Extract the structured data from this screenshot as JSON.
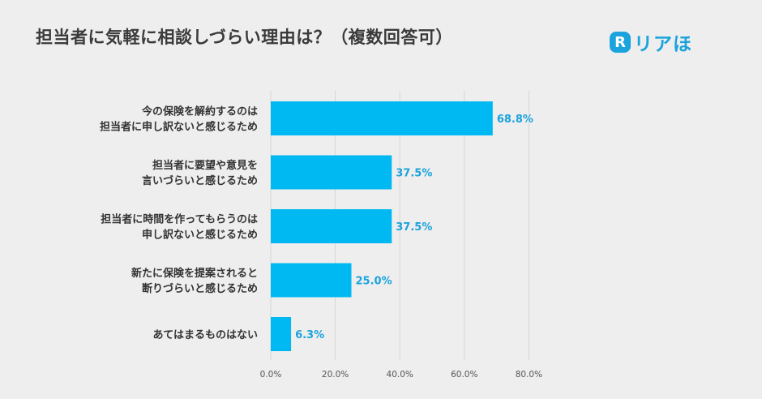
{
  "title": "担当者に気軽に相談しづらい理由は？（複数回答可）",
  "logo": {
    "mark": "R",
    "text": "リアほ",
    "color": "#1aa3dc"
  },
  "chart_data": {
    "type": "bar",
    "orientation": "horizontal",
    "categories": [
      [
        "今の保険を解約するのは",
        "担当者に申し訳ないと感じるため"
      ],
      [
        "担当者に要望や意見を",
        "言いづらいと感じるため"
      ],
      [
        "担当者に時間を作ってもらうのは",
        "申し訳ないと感じるため"
      ],
      [
        "新たに保険を提案されると",
        "断りづらいと感じるため"
      ],
      [
        "あてはまるものはない"
      ]
    ],
    "values": [
      68.8,
      37.5,
      37.5,
      25.0,
      6.3
    ],
    "value_labels": [
      "68.8%",
      "37.5%",
      "37.5%",
      "25.0%",
      "6.3%"
    ],
    "xticks": [
      "0.0%",
      "20.0%",
      "40.0%",
      "60.0%",
      "80.0%"
    ],
    "xlim": [
      0,
      80
    ],
    "grid": true,
    "bar_color": "#00b9f2",
    "label_color": "#1aa3dc"
  }
}
